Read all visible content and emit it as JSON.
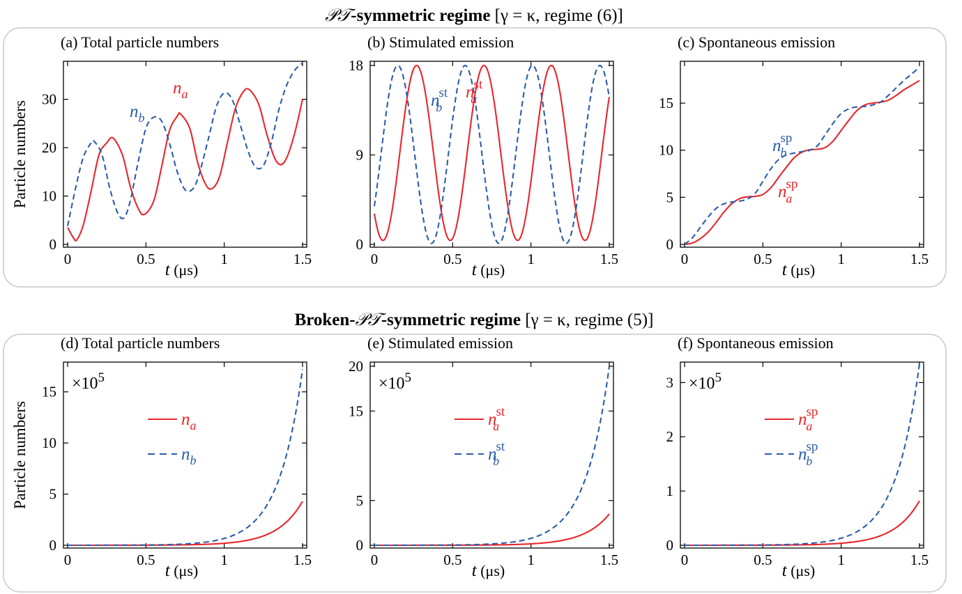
{
  "sections": [
    {
      "title_bold": "-symmetric regime",
      "title_rest": " [γ = κ, regime (6)]"
    },
    {
      "title_prefix_bold": "Broken-",
      "title_bold": "-symmetric regime",
      "title_rest": " [γ = κ, regime (5)]"
    }
  ],
  "pt_symbol": "𝒫𝒯",
  "series_names": {
    "a": "n",
    "a_sub": "a",
    "b": "n",
    "b_sub": "b",
    "st": "st",
    "sp": "sp"
  },
  "colors": {
    "a": "#e8262b",
    "b": "#2b5cab"
  },
  "chart_data": [
    {
      "panel": "(a)",
      "title": "Total particle numbers",
      "type": "line",
      "xlabel_var": "t",
      "xlabel_unit": " (μs)",
      "ylabel": "Particle numbers",
      "xlim": [
        0,
        1.5
      ],
      "ylim": [
        0,
        37
      ],
      "xticks": [
        0,
        0.5,
        1,
        1.5
      ],
      "xticklabels": [
        "0",
        "0.5",
        "1",
        "1.5"
      ],
      "yticks": [
        0,
        10,
        20,
        30
      ],
      "yticklabels": [
        "0",
        "10",
        "20",
        "30"
      ],
      "series": [
        {
          "key": "a",
          "style": "solid",
          "x": [
            0,
            0.04,
            0.06,
            0.1,
            0.15,
            0.2,
            0.25,
            0.29,
            0.35,
            0.4,
            0.45,
            0.49,
            0.55,
            0.6,
            0.65,
            0.7,
            0.72,
            0.78,
            0.83,
            0.88,
            0.92,
            0.97,
            1.02,
            1.07,
            1.12,
            1.16,
            1.22,
            1.27,
            1.32,
            1.36,
            1.4,
            1.45,
            1.5
          ],
          "y": [
            3.5,
            1.2,
            1,
            4,
            11,
            18.5,
            21,
            22,
            18.5,
            12,
            7.5,
            6.2,
            9,
            16,
            23.5,
            26.5,
            27,
            24,
            17,
            12.5,
            11.5,
            14,
            21,
            28,
            31.5,
            32,
            29,
            23,
            18,
            16.5,
            18,
            23,
            30
          ]
        },
        {
          "key": "b",
          "style": "dashed",
          "x": [
            0,
            0.05,
            0.1,
            0.15,
            0.17,
            0.22,
            0.27,
            0.32,
            0.36,
            0.4,
            0.45,
            0.5,
            0.55,
            0.6,
            0.65,
            0.7,
            0.75,
            0.8,
            0.84,
            0.9,
            0.95,
            1,
            1.05,
            1.1,
            1.15,
            1.2,
            1.25,
            1.3,
            1.35,
            1.4,
            1.45,
            1.5
          ],
          "y": [
            3.8,
            11.5,
            18,
            21,
            21.3,
            18.5,
            11.5,
            6.5,
            5.5,
            9,
            17,
            24,
            26.3,
            25.5,
            21,
            15,
            11.3,
            11.5,
            14.5,
            22,
            28.5,
            31.3,
            30,
            25,
            19.5,
            16,
            16.3,
            21,
            28,
            33,
            36,
            37.5
          ]
        }
      ]
    },
    {
      "panel": "(b)",
      "title": "Stimulated emission",
      "type": "line",
      "xlabel_var": "t",
      "xlabel_unit": " (μs)",
      "ylabel": "",
      "xlim": [
        0,
        1.5
      ],
      "ylim": [
        0,
        18
      ],
      "xticks": [
        0,
        0.5,
        1,
        1.5
      ],
      "xticklabels": [
        "0",
        "0.5",
        "1",
        "1.5"
      ],
      "yticks": [
        0,
        9,
        18
      ],
      "yticklabels": [
        "0",
        "9",
        "18"
      ],
      "series": [
        {
          "key": "a",
          "sup": "st",
          "style": "solid",
          "period": 0.43,
          "x_max": 0.27,
          "x_min": 0.055,
          "amp_max": 18,
          "amp_min": 0.4
        },
        {
          "key": "b",
          "sup": "st",
          "style": "dashed",
          "period": 0.43,
          "x_max": 0.15,
          "x_min": 0.365,
          "amp_max": 18,
          "amp_min": 0.1
        }
      ]
    },
    {
      "panel": "(c)",
      "title": "Spontaneous emission",
      "type": "line",
      "xlabel_var": "t",
      "xlabel_unit": " (μs)",
      "ylabel": "",
      "xlim": [
        0,
        1.5
      ],
      "ylim": [
        0,
        19
      ],
      "xticks": [
        0,
        0.5,
        1,
        1.5
      ],
      "xticklabels": [
        "0",
        "0.5",
        "1",
        "1.5"
      ],
      "yticks": [
        0,
        5,
        10,
        15
      ],
      "yticklabels": [
        "0",
        "5",
        "10",
        "15"
      ],
      "series": [
        {
          "key": "a",
          "sup": "sp",
          "style": "solid",
          "x": [
            0,
            0.05,
            0.1,
            0.15,
            0.2,
            0.25,
            0.3,
            0.35,
            0.4,
            0.45,
            0.5,
            0.55,
            0.6,
            0.65,
            0.7,
            0.75,
            0.8,
            0.85,
            0.9,
            0.95,
            1,
            1.05,
            1.1,
            1.15,
            1.2,
            1.25,
            1.3,
            1.35,
            1.4,
            1.45,
            1.5
          ],
          "y": [
            0,
            0.15,
            0.6,
            1.3,
            2.3,
            3.4,
            4.3,
            4.85,
            5.05,
            5.1,
            5.3,
            6,
            7.1,
            8.2,
            9.2,
            9.8,
            10.05,
            10.1,
            10.3,
            11,
            12.1,
            13.2,
            14.2,
            14.8,
            15,
            15.1,
            15.3,
            15.8,
            16.4,
            16.9,
            17.4
          ]
        },
        {
          "key": "b",
          "sup": "sp",
          "style": "dashed",
          "x": [
            0,
            0.05,
            0.1,
            0.15,
            0.2,
            0.25,
            0.3,
            0.35,
            0.4,
            0.45,
            0.5,
            0.55,
            0.6,
            0.65,
            0.7,
            0.75,
            0.8,
            0.85,
            0.9,
            0.95,
            1,
            1.05,
            1.1,
            1.15,
            1.2,
            1.25,
            1.3,
            1.35,
            1.4,
            1.45,
            1.5
          ],
          "y": [
            0,
            0.7,
            1.8,
            2.9,
            3.8,
            4.3,
            4.5,
            4.6,
            4.8,
            5.4,
            6.7,
            8,
            9,
            9.5,
            9.7,
            9.85,
            10,
            10.5,
            11.7,
            12.9,
            13.9,
            14.4,
            14.6,
            14.65,
            14.8,
            15.1,
            15.8,
            16.6,
            17.4,
            18.1,
            18.8
          ]
        }
      ]
    },
    {
      "panel": "(d)",
      "title": "Total particle numbers",
      "type": "line",
      "xlabel_var": "t",
      "xlabel_unit": " (μs)",
      "ylabel": "Particle numbers",
      "multiplier": "×10",
      "multiplier_exp": "5",
      "xlim": [
        0,
        1.5
      ],
      "ylim": [
        0,
        17.5
      ],
      "xticks": [
        0,
        0.5,
        1,
        1.5
      ],
      "xticklabels": [
        "0",
        "0.5",
        "1",
        "1.5"
      ],
      "yticks": [
        0,
        5,
        10,
        15
      ],
      "yticklabels": [
        "0",
        "5",
        "10",
        "15"
      ],
      "series": [
        {
          "key": "a",
          "style": "solid",
          "scale": 4.3,
          "rate": 6.2
        },
        {
          "key": "b",
          "style": "dashed",
          "scale": 17.2,
          "rate": 6.5
        }
      ]
    },
    {
      "panel": "(e)",
      "title": "Stimulated emission",
      "type": "line",
      "xlabel_var": "t",
      "xlabel_unit": " (μs)",
      "ylabel": "",
      "multiplier": "×10",
      "multiplier_exp": "5",
      "xlim": [
        0,
        1.5
      ],
      "ylim": [
        0,
        20
      ],
      "xticks": [
        0,
        0.5,
        1,
        1.5
      ],
      "xticklabels": [
        "0",
        "0.5",
        "1",
        "1.5"
      ],
      "yticks": [
        0,
        5,
        15,
        20
      ],
      "yticklabels": [
        "0",
        "5",
        "15",
        "20"
      ],
      "series": [
        {
          "key": "a",
          "sup": "st",
          "style": "solid",
          "scale": 3.5,
          "rate": 6.2
        },
        {
          "key": "b",
          "sup": "st",
          "style": "dashed",
          "scale": 20,
          "rate": 6.5
        }
      ]
    },
    {
      "panel": "(f)",
      "title": "Spontaneous emission",
      "type": "line",
      "xlabel_var": "t",
      "xlabel_unit": " (μs)",
      "ylabel": "",
      "multiplier": "×10",
      "multiplier_exp": "5",
      "xlim": [
        0,
        1.5
      ],
      "ylim": [
        0,
        3.3
      ],
      "xticks": [
        0,
        0.5,
        1,
        1.5
      ],
      "xticklabels": [
        "0",
        "0.5",
        "1",
        "1.5"
      ],
      "yticks": [
        0,
        1,
        2,
        3
      ],
      "yticklabels": [
        "0",
        "1",
        "2",
        "3"
      ],
      "series": [
        {
          "key": "a",
          "sup": "sp",
          "style": "solid",
          "scale": 0.82,
          "rate": 6.2
        },
        {
          "key": "b",
          "sup": "sp",
          "style": "dashed",
          "scale": 3.35,
          "rate": 6.5
        }
      ]
    }
  ]
}
